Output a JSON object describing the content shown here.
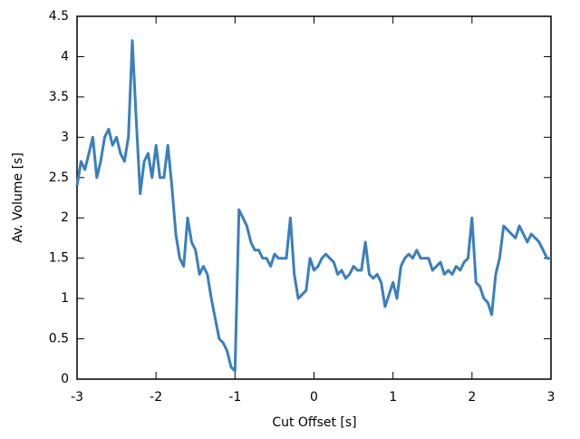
{
  "chart_data": {
    "type": "line",
    "xlabel": "Cut Offset [s]",
    "ylabel": "Av. Volume [s]",
    "x": [
      -3,
      -2.95,
      -2.9,
      -2.85,
      -2.8,
      -2.75,
      -2.7,
      -2.65,
      -2.6,
      -2.55,
      -2.5,
      -2.45,
      -2.4,
      -2.35,
      -2.3,
      -2.25,
      -2.2,
      -2.15,
      -2.1,
      -2.05,
      -2,
      -1.95,
      -1.9,
      -1.85,
      -1.8,
      -1.75,
      -1.7,
      -1.65,
      -1.6,
      -1.55,
      -1.5,
      -1.45,
      -1.4,
      -1.35,
      -1.3,
      -1.25,
      -1.2,
      -1.15,
      -1.1,
      -1.05,
      -1,
      -0.95,
      -0.9,
      -0.85,
      -0.8,
      -0.75,
      -0.7,
      -0.65,
      -0.6,
      -0.55,
      -0.5,
      -0.45,
      -0.4,
      -0.35,
      -0.3,
      -0.25,
      -0.2,
      -0.15,
      -0.1,
      -0.05,
      0,
      0.05,
      0.1,
      0.15,
      0.2,
      0.25,
      0.3,
      0.35,
      0.4,
      0.45,
      0.5,
      0.55,
      0.6,
      0.65,
      0.7,
      0.75,
      0.8,
      0.85,
      0.9,
      0.95,
      1,
      1.05,
      1.1,
      1.15,
      1.2,
      1.25,
      1.3,
      1.35,
      1.4,
      1.45,
      1.5,
      1.55,
      1.6,
      1.65,
      1.7,
      1.75,
      1.8,
      1.85,
      1.9,
      1.95,
      2,
      2.05,
      2.1,
      2.15,
      2.2,
      2.25,
      2.3,
      2.35,
      2.4,
      2.45,
      2.5,
      2.55,
      2.6,
      2.65,
      2.7,
      2.75,
      2.8,
      2.85,
      2.9,
      2.95,
      3
    ],
    "series": [
      {
        "color": "#3a7fbd",
        "values": [
          2.4,
          2.7,
          2.6,
          2.8,
          3.0,
          2.5,
          2.7,
          3.0,
          3.1,
          2.9,
          3.0,
          2.8,
          2.7,
          3.0,
          4.2,
          3.2,
          2.3,
          2.7,
          2.8,
          2.5,
          2.9,
          2.5,
          2.5,
          2.9,
          2.4,
          1.8,
          1.5,
          1.4,
          2.0,
          1.7,
          1.6,
          1.3,
          1.4,
          1.3,
          1.0,
          0.75,
          0.5,
          0.45,
          0.35,
          0.15,
          0.1,
          2.1,
          2.0,
          1.9,
          1.7,
          1.6,
          1.6,
          1.5,
          1.5,
          1.4,
          1.55,
          1.5,
          1.5,
          1.5,
          2.0,
          1.3,
          1.0,
          1.05,
          1.1,
          1.5,
          1.35,
          1.4,
          1.5,
          1.55,
          1.5,
          1.45,
          1.3,
          1.35,
          1.25,
          1.3,
          1.4,
          1.35,
          1.35,
          1.7,
          1.3,
          1.25,
          1.3,
          1.2,
          0.9,
          1.05,
          1.2,
          1.0,
          1.4,
          1.5,
          1.55,
          1.5,
          1.6,
          1.5,
          1.5,
          1.5,
          1.35,
          1.4,
          1.45,
          1.3,
          1.35,
          1.3,
          1.4,
          1.35,
          1.45,
          1.5,
          2.0,
          1.2,
          1.15,
          1.0,
          0.95,
          0.8,
          1.3,
          1.5,
          1.9,
          1.85,
          1.8,
          1.75,
          1.9,
          1.8,
          1.7,
          1.8,
          1.75,
          1.7,
          1.6,
          1.5,
          1.5
        ]
      }
    ],
    "xlim": [
      -3,
      3
    ],
    "ylim": [
      0,
      4.5
    ],
    "xticks": [
      -3,
      -2,
      -1,
      0,
      1,
      2,
      3
    ],
    "yticks": [
      0,
      0.5,
      1,
      1.5,
      2,
      2.5,
      3,
      3.5,
      4,
      4.5
    ]
  }
}
